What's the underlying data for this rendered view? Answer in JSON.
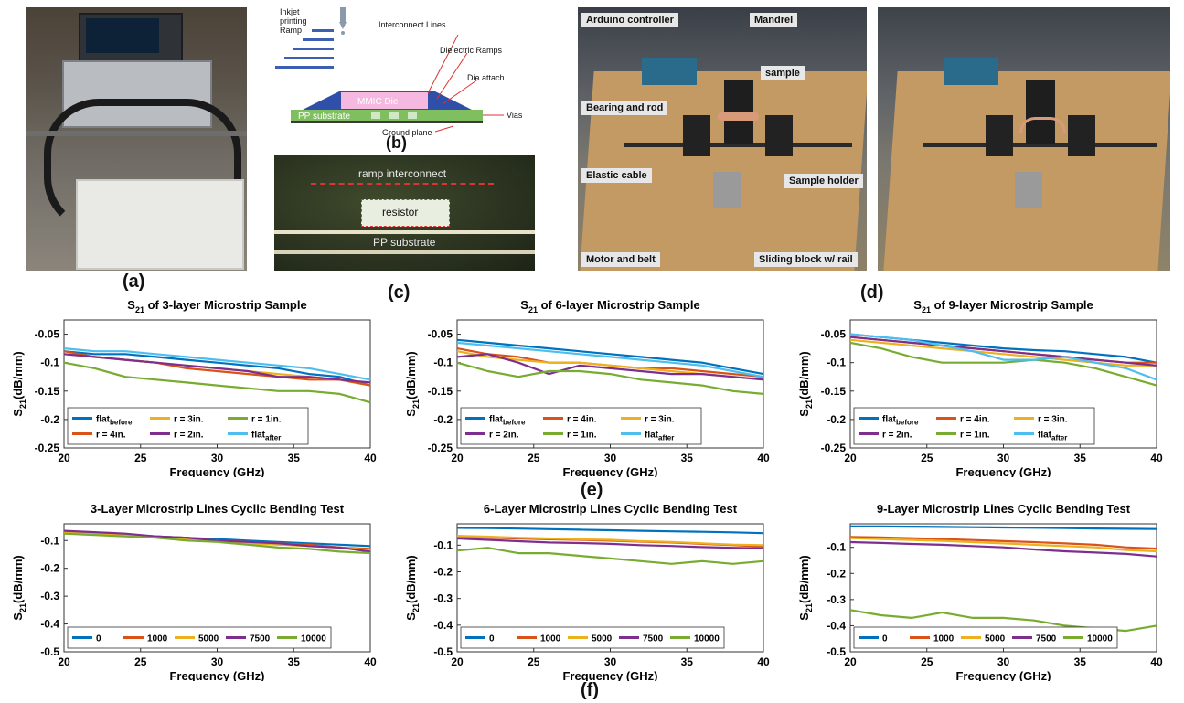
{
  "panels": {
    "a": "(a)",
    "b": "(b)",
    "c": "(c)",
    "d": "(d)",
    "e": "(e)",
    "f": "(f)"
  },
  "diagram_b": {
    "inkjet": [
      "Inkjet",
      "printing",
      "Ramp"
    ],
    "interconnect": "Interconnect Lines",
    "dielectric": "Dielectric Ramps",
    "die_attach": "Die attach",
    "mmic": "MMIC Die",
    "pp": "PP substrate",
    "vias": "Vias",
    "ground": "Ground plane"
  },
  "micrograph": {
    "ramp": "ramp interconnect",
    "resistor": "resistor",
    "pp": "PP substrate"
  },
  "photo_c_labels": {
    "arduino": "Arduino controller",
    "mandrel": "Mandrel",
    "sample": "sample",
    "bearing": "Bearing and rod",
    "elastic": "Elastic cable",
    "holder": "Sample holder",
    "motor": "Motor and belt",
    "sliding": "Sliding block w/ rail"
  },
  "colors": {
    "blue": "#0072BD",
    "orange": "#D95319",
    "yellow": "#EDB120",
    "purple": "#7E2F8E",
    "green": "#77AC30",
    "cyan": "#4DBEEE"
  },
  "chart_data": [
    {
      "type": "line",
      "title": "S21 of 3-layer Microstrip Sample",
      "xlabel": "Frequency (GHz)",
      "ylabel": "S21(dB/mm)",
      "xlim": [
        20,
        40
      ],
      "ylim": [
        -0.25,
        -0.025
      ],
      "xticks": [
        20,
        25,
        30,
        35,
        40
      ],
      "yticks": [
        -0.05,
        -0.1,
        -0.15,
        -0.2,
        -0.25
      ],
      "x": [
        20,
        22,
        24,
        26,
        28,
        30,
        32,
        34,
        36,
        38,
        40
      ],
      "legend_cols": 3,
      "series": [
        {
          "name": "flat_before",
          "color": "#0072BD",
          "values": [
            -0.08,
            -0.085,
            -0.085,
            -0.09,
            -0.095,
            -0.1,
            -0.105,
            -0.11,
            -0.12,
            -0.125,
            -0.14
          ]
        },
        {
          "name": "r = 3in.",
          "color": "#EDB120",
          "values": [
            -0.085,
            -0.09,
            -0.095,
            -0.1,
            -0.105,
            -0.11,
            -0.115,
            -0.12,
            -0.125,
            -0.13,
            -0.14
          ]
        },
        {
          "name": "r = 1in.",
          "color": "#77AC30",
          "values": [
            -0.1,
            -0.11,
            -0.125,
            -0.13,
            -0.135,
            -0.14,
            -0.145,
            -0.15,
            -0.15,
            -0.155,
            -0.17
          ]
        },
        {
          "name": "r = 4in.",
          "color": "#D95319",
          "values": [
            -0.08,
            -0.09,
            -0.095,
            -0.1,
            -0.11,
            -0.115,
            -0.12,
            -0.125,
            -0.13,
            -0.13,
            -0.14
          ]
        },
        {
          "name": "r = 2in.",
          "color": "#7E2F8E",
          "values": [
            -0.085,
            -0.09,
            -0.095,
            -0.1,
            -0.105,
            -0.11,
            -0.115,
            -0.125,
            -0.125,
            -0.13,
            -0.135
          ]
        },
        {
          "name": "flat_after",
          "color": "#4DBEEE",
          "values": [
            -0.075,
            -0.08,
            -0.08,
            -0.085,
            -0.09,
            -0.095,
            -0.1,
            -0.105,
            -0.11,
            -0.12,
            -0.13
          ]
        }
      ],
      "legend_order": [
        {
          "main": "flat",
          "sub": "before",
          "color": "#0072BD"
        },
        {
          "main": "r = 3in.",
          "sub": "",
          "color": "#EDB120"
        },
        {
          "main": "r = 1in.",
          "sub": "",
          "color": "#77AC30"
        },
        {
          "main": "r = 4in.",
          "sub": "",
          "color": "#D95319"
        },
        {
          "main": "r = 2in.",
          "sub": "",
          "color": "#7E2F8E"
        },
        {
          "main": "flat",
          "sub": "after",
          "color": "#4DBEEE"
        }
      ]
    },
    {
      "type": "line",
      "title": "S21 of 6-layer Microstrip Sample",
      "xlabel": "Frequency (GHz)",
      "ylabel": "S21(dB/mm)",
      "xlim": [
        20,
        40
      ],
      "ylim": [
        -0.25,
        -0.025
      ],
      "xticks": [
        20,
        25,
        30,
        35,
        40
      ],
      "yticks": [
        -0.05,
        -0.1,
        -0.15,
        -0.2,
        -0.25
      ],
      "x": [
        20,
        22,
        24,
        26,
        28,
        30,
        32,
        34,
        36,
        38,
        40
      ],
      "legend_cols": 3,
      "series": [
        {
          "name": "flat_before",
          "color": "#0072BD",
          "values": [
            -0.06,
            -0.065,
            -0.07,
            -0.075,
            -0.08,
            -0.085,
            -0.09,
            -0.095,
            -0.1,
            -0.11,
            -0.12
          ]
        },
        {
          "name": "r = 4in.",
          "color": "#D95319",
          "values": [
            -0.075,
            -0.085,
            -0.09,
            -0.1,
            -0.1,
            -0.105,
            -0.11,
            -0.11,
            -0.115,
            -0.12,
            -0.125
          ]
        },
        {
          "name": "r = 3in.",
          "color": "#EDB120",
          "values": [
            -0.08,
            -0.09,
            -0.095,
            -0.1,
            -0.1,
            -0.105,
            -0.11,
            -0.115,
            -0.12,
            -0.125,
            -0.13
          ]
        },
        {
          "name": "r = 2in.",
          "color": "#7E2F8E",
          "values": [
            -0.09,
            -0.085,
            -0.1,
            -0.12,
            -0.105,
            -0.11,
            -0.115,
            -0.12,
            -0.12,
            -0.125,
            -0.13
          ]
        },
        {
          "name": "r = 1in.",
          "color": "#77AC30",
          "values": [
            -0.1,
            -0.115,
            -0.125,
            -0.115,
            -0.115,
            -0.12,
            -0.13,
            -0.135,
            -0.14,
            -0.15,
            -0.155
          ]
        },
        {
          "name": "flat_after",
          "color": "#4DBEEE",
          "values": [
            -0.065,
            -0.07,
            -0.075,
            -0.08,
            -0.085,
            -0.09,
            -0.095,
            -0.1,
            -0.105,
            -0.115,
            -0.125
          ]
        }
      ],
      "legend_order": [
        {
          "main": "flat",
          "sub": "before",
          "color": "#0072BD"
        },
        {
          "main": "r = 4in.",
          "sub": "",
          "color": "#D95319"
        },
        {
          "main": "r = 3in.",
          "sub": "",
          "color": "#EDB120"
        },
        {
          "main": "r = 2in.",
          "sub": "",
          "color": "#7E2F8E"
        },
        {
          "main": "r = 1in.",
          "sub": "",
          "color": "#77AC30"
        },
        {
          "main": "flat",
          "sub": "after",
          "color": "#4DBEEE"
        }
      ]
    },
    {
      "type": "line",
      "title": "S21 of 9-layer Microstrip Sample",
      "xlabel": "Frequency (GHz)",
      "ylabel": "S21(dB/mm)",
      "xlim": [
        20,
        40
      ],
      "ylim": [
        -0.25,
        -0.025
      ],
      "xticks": [
        20,
        25,
        30,
        35,
        40
      ],
      "yticks": [
        -0.05,
        -0.1,
        -0.15,
        -0.2,
        -0.25
      ],
      "x": [
        20,
        22,
        24,
        26,
        28,
        30,
        32,
        34,
        36,
        38,
        40
      ],
      "legend_cols": 3,
      "series": [
        {
          "name": "flat_before",
          "color": "#0072BD",
          "values": [
            -0.05,
            -0.055,
            -0.06,
            -0.065,
            -0.07,
            -0.075,
            -0.078,
            -0.08,
            -0.085,
            -0.09,
            -0.1
          ]
        },
        {
          "name": "r = 4in.",
          "color": "#D95319",
          "values": [
            -0.055,
            -0.06,
            -0.065,
            -0.07,
            -0.075,
            -0.08,
            -0.085,
            -0.09,
            -0.095,
            -0.1,
            -0.1
          ]
        },
        {
          "name": "r = 3in.",
          "color": "#EDB120",
          "values": [
            -0.06,
            -0.065,
            -0.07,
            -0.075,
            -0.08,
            -0.085,
            -0.09,
            -0.095,
            -0.1,
            -0.105,
            -0.105
          ]
        },
        {
          "name": "r = 2in.",
          "color": "#7E2F8E",
          "values": [
            -0.055,
            -0.06,
            -0.065,
            -0.07,
            -0.075,
            -0.08,
            -0.085,
            -0.09,
            -0.095,
            -0.1,
            -0.105
          ]
        },
        {
          "name": "r = 1in.",
          "color": "#77AC30",
          "values": [
            -0.065,
            -0.075,
            -0.09,
            -0.1,
            -0.1,
            -0.1,
            -0.095,
            -0.1,
            -0.11,
            -0.125,
            -0.14
          ]
        },
        {
          "name": "flat_after",
          "color": "#4DBEEE",
          "values": [
            -0.05,
            -0.055,
            -0.06,
            -0.07,
            -0.08,
            -0.095,
            -0.095,
            -0.09,
            -0.1,
            -0.11,
            -0.13
          ]
        }
      ],
      "legend_order": [
        {
          "main": "flat",
          "sub": "before",
          "color": "#0072BD"
        },
        {
          "main": "r = 4in.",
          "sub": "",
          "color": "#D95319"
        },
        {
          "main": "r = 3in.",
          "sub": "",
          "color": "#EDB120"
        },
        {
          "main": "r = 2in.",
          "sub": "",
          "color": "#7E2F8E"
        },
        {
          "main": "r = 1in.",
          "sub": "",
          "color": "#77AC30"
        },
        {
          "main": "flat",
          "sub": "after",
          "color": "#4DBEEE"
        }
      ]
    },
    {
      "type": "line",
      "title": "3-Layer Microstrip Lines Cyclic Bending Test",
      "xlabel": "Frequency (GHz)",
      "ylabel": "S21(dB/mm)",
      "xlim": [
        20,
        40
      ],
      "ylim": [
        -0.5,
        -0.04
      ],
      "xticks": [
        20,
        25,
        30,
        35,
        40
      ],
      "yticks": [
        -0.1,
        -0.2,
        -0.3,
        -0.4,
        -0.5
      ],
      "x": [
        20,
        22,
        24,
        26,
        28,
        30,
        32,
        34,
        36,
        38,
        40
      ],
      "legend_cols": 5,
      "series": [
        {
          "name": "0",
          "color": "#0072BD",
          "values": [
            -0.07,
            -0.075,
            -0.08,
            -0.085,
            -0.09,
            -0.095,
            -0.1,
            -0.105,
            -0.11,
            -0.115,
            -0.12
          ]
        },
        {
          "name": "1000",
          "color": "#D95319",
          "values": [
            -0.07,
            -0.075,
            -0.08,
            -0.085,
            -0.09,
            -0.1,
            -0.105,
            -0.11,
            -0.115,
            -0.125,
            -0.13
          ]
        },
        {
          "name": "5000",
          "color": "#EDB120",
          "values": [
            -0.07,
            -0.075,
            -0.08,
            -0.085,
            -0.095,
            -0.1,
            -0.11,
            -0.115,
            -0.12,
            -0.125,
            -0.135
          ]
        },
        {
          "name": "7500",
          "color": "#7E2F8E",
          "values": [
            -0.065,
            -0.07,
            -0.075,
            -0.085,
            -0.09,
            -0.1,
            -0.105,
            -0.11,
            -0.12,
            -0.125,
            -0.14
          ]
        },
        {
          "name": "10000",
          "color": "#77AC30",
          "values": [
            -0.075,
            -0.08,
            -0.085,
            -0.09,
            -0.1,
            -0.105,
            -0.115,
            -0.125,
            -0.13,
            -0.14,
            -0.145
          ]
        }
      ],
      "legend_order": [
        {
          "main": "0",
          "sub": "",
          "color": "#0072BD"
        },
        {
          "main": "1000",
          "sub": "",
          "color": "#D95319"
        },
        {
          "main": "5000",
          "sub": "",
          "color": "#EDB120"
        },
        {
          "main": "7500",
          "sub": "",
          "color": "#7E2F8E"
        },
        {
          "main": "10000",
          "sub": "",
          "color": "#77AC30"
        }
      ]
    },
    {
      "type": "line",
      "title": "6-Layer Microstrip Lines Cyclic Bending Test",
      "xlabel": "Frequency (GHz)",
      "ylabel": "S21(dB/mm)",
      "xlim": [
        20,
        40
      ],
      "ylim": [
        -0.5,
        -0.02
      ],
      "xticks": [
        20,
        25,
        30,
        35,
        40
      ],
      "yticks": [
        -0.1,
        -0.2,
        -0.3,
        -0.4,
        -0.5
      ],
      "x": [
        20,
        22,
        24,
        26,
        28,
        30,
        32,
        34,
        36,
        38,
        40
      ],
      "legend_cols": 5,
      "series": [
        {
          "name": "0",
          "color": "#0072BD",
          "values": [
            -0.035,
            -0.036,
            -0.038,
            -0.04,
            -0.042,
            -0.044,
            -0.046,
            -0.048,
            -0.05,
            -0.052,
            -0.055
          ]
        },
        {
          "name": "1000",
          "color": "#D95319",
          "values": [
            -0.07,
            -0.072,
            -0.075,
            -0.078,
            -0.08,
            -0.083,
            -0.087,
            -0.09,
            -0.095,
            -0.1,
            -0.105
          ]
        },
        {
          "name": "5000",
          "color": "#EDB120",
          "values": [
            -0.065,
            -0.068,
            -0.072,
            -0.075,
            -0.078,
            -0.08,
            -0.085,
            -0.088,
            -0.093,
            -0.098,
            -0.1
          ]
        },
        {
          "name": "7500",
          "color": "#7E2F8E",
          "values": [
            -0.075,
            -0.08,
            -0.085,
            -0.09,
            -0.092,
            -0.095,
            -0.1,
            -0.103,
            -0.107,
            -0.11,
            -0.112
          ]
        },
        {
          "name": "10000",
          "color": "#77AC30",
          "values": [
            -0.12,
            -0.11,
            -0.13,
            -0.13,
            -0.14,
            -0.15,
            -0.16,
            -0.17,
            -0.16,
            -0.17,
            -0.16
          ]
        }
      ],
      "legend_order": [
        {
          "main": "0",
          "sub": "",
          "color": "#0072BD"
        },
        {
          "main": "1000",
          "sub": "",
          "color": "#D95319"
        },
        {
          "main": "5000",
          "sub": "",
          "color": "#EDB120"
        },
        {
          "main": "7500",
          "sub": "",
          "color": "#7E2F8E"
        },
        {
          "main": "10000",
          "sub": "",
          "color": "#77AC30"
        }
      ]
    },
    {
      "type": "line",
      "title": "9-Layer Microstrip Lines Cyclic Bending Test",
      "xlabel": "Frequency (GHz)",
      "ylabel": "S21(dB/mm)",
      "xlim": [
        20,
        40
      ],
      "ylim": [
        -0.5,
        -0.01
      ],
      "xticks": [
        20,
        25,
        30,
        35,
        40
      ],
      "yticks": [
        -0.1,
        -0.2,
        -0.3,
        -0.4,
        -0.5
      ],
      "x": [
        20,
        22,
        24,
        26,
        28,
        30,
        32,
        34,
        36,
        38,
        40
      ],
      "legend_cols": 5,
      "series": [
        {
          "name": "0",
          "color": "#0072BD",
          "values": [
            -0.02,
            -0.02,
            -0.021,
            -0.022,
            -0.023,
            -0.024,
            -0.025,
            -0.026,
            -0.028,
            -0.029,
            -0.03
          ]
        },
        {
          "name": "1000",
          "color": "#D95319",
          "values": [
            -0.06,
            -0.062,
            -0.065,
            -0.068,
            -0.072,
            -0.076,
            -0.08,
            -0.085,
            -0.09,
            -0.1,
            -0.105
          ]
        },
        {
          "name": "5000",
          "color": "#EDB120",
          "values": [
            -0.065,
            -0.068,
            -0.072,
            -0.075,
            -0.08,
            -0.085,
            -0.09,
            -0.095,
            -0.1,
            -0.11,
            -0.115
          ]
        },
        {
          "name": "7500",
          "color": "#7E2F8E",
          "values": [
            -0.08,
            -0.083,
            -0.087,
            -0.09,
            -0.095,
            -0.1,
            -0.108,
            -0.115,
            -0.12,
            -0.125,
            -0.135
          ]
        },
        {
          "name": "10000",
          "color": "#77AC30",
          "values": [
            -0.34,
            -0.36,
            -0.37,
            -0.35,
            -0.37,
            -0.37,
            -0.38,
            -0.4,
            -0.41,
            -0.42,
            -0.4
          ]
        }
      ],
      "legend_order": [
        {
          "main": "0",
          "sub": "",
          "color": "#0072BD"
        },
        {
          "main": "1000",
          "sub": "",
          "color": "#D95319"
        },
        {
          "main": "5000",
          "sub": "",
          "color": "#EDB120"
        },
        {
          "main": "7500",
          "sub": "",
          "color": "#7E2F8E"
        },
        {
          "main": "10000",
          "sub": "",
          "color": "#77AC30"
        }
      ]
    }
  ]
}
